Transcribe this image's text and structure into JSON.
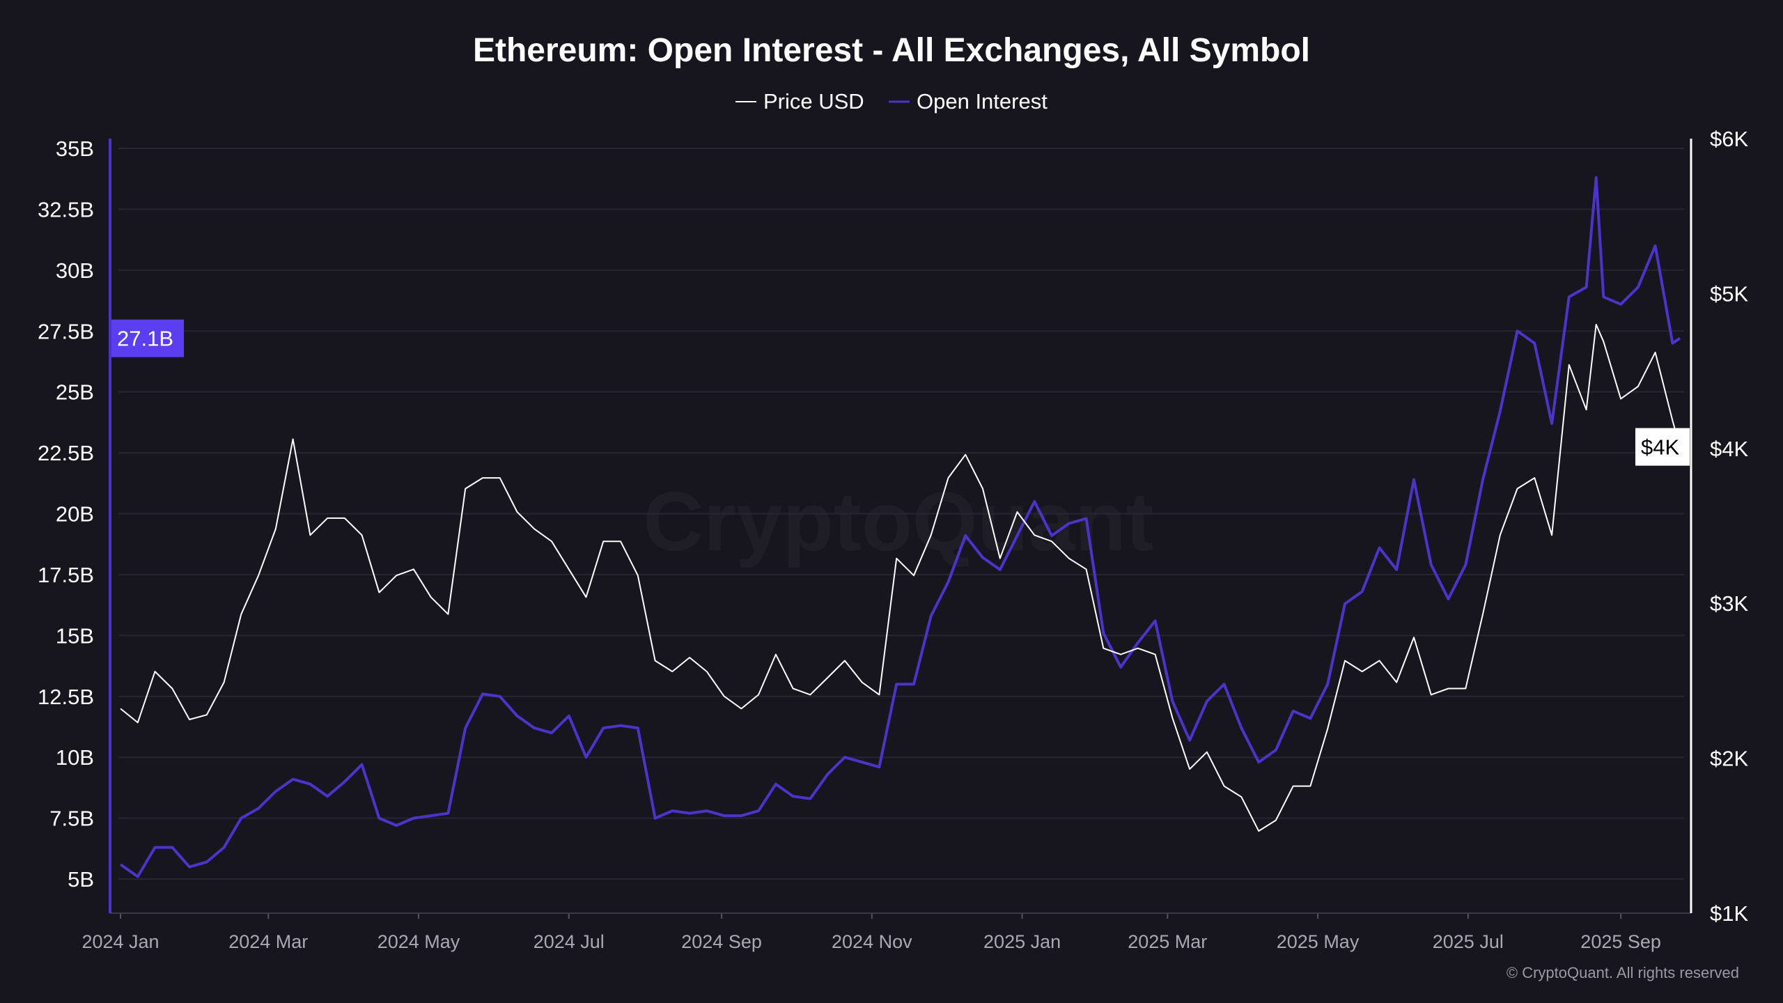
{
  "chart_data": {
    "type": "line",
    "title": "Ethereum: Open Interest - All Exchanges, All Symbol",
    "legend_position": "top-center",
    "grid": true,
    "watermark": "CryptoQuant",
    "copyright": "© CryptoQuant. All rights reserved",
    "x_ticks": [
      "2024 Jan",
      "2024 Mar",
      "2024 May",
      "2024 Jul",
      "2024 Sep",
      "2024 Nov",
      "2025 Jan",
      "2025 Mar",
      "2025 May",
      "2025 Jul",
      "2025 Sep"
    ],
    "x_tick_dates": [
      "2024-01-01",
      "2024-03-01",
      "2024-05-01",
      "2024-07-01",
      "2024-09-01",
      "2024-11-01",
      "2025-01-01",
      "2025-03-01",
      "2025-05-01",
      "2025-07-01",
      "2025-09-01"
    ],
    "xlim": [
      "2024-01-01",
      "2025-09-25"
    ],
    "left_axis": {
      "series": "Open Interest",
      "unit": "B",
      "ylim": [
        3.6,
        35.4
      ],
      "ticks": [
        "5B",
        "7.5B",
        "10B",
        "12.5B",
        "15B",
        "17.5B",
        "20B",
        "22.5B",
        "25B",
        "27.5B",
        "30B",
        "32.5B",
        "35B"
      ],
      "tick_values": [
        5,
        7.5,
        10,
        12.5,
        15,
        17.5,
        20,
        22.5,
        25,
        27.5,
        30,
        32.5,
        35
      ],
      "current_label": "27.1B"
    },
    "right_axis": {
      "series": "Price USD",
      "unit": "$K",
      "ylim": [
        1,
        6
      ],
      "ticks": [
        "$1K",
        "$2K",
        "$3K",
        "$4K",
        "$5K",
        "$6K"
      ],
      "tick_values": [
        1,
        2,
        3,
        4,
        5,
        6
      ],
      "current_label": "$4K"
    },
    "colors": {
      "background": "#17161f",
      "price": "#ffffff",
      "open_interest": "#4a34c9",
      "badge": "#5a3ef0",
      "grid": "#272632"
    },
    "dates": [
      "2024-01-01",
      "2024-01-08",
      "2024-01-15",
      "2024-01-22",
      "2024-01-29",
      "2024-02-05",
      "2024-02-12",
      "2024-02-19",
      "2024-02-26",
      "2024-03-04",
      "2024-03-11",
      "2024-03-18",
      "2024-03-25",
      "2024-04-01",
      "2024-04-08",
      "2024-04-15",
      "2024-04-22",
      "2024-04-29",
      "2024-05-06",
      "2024-05-13",
      "2024-05-20",
      "2024-05-27",
      "2024-06-03",
      "2024-06-10",
      "2024-06-17",
      "2024-06-24",
      "2024-07-01",
      "2024-07-08",
      "2024-07-15",
      "2024-07-22",
      "2024-07-29",
      "2024-08-05",
      "2024-08-12",
      "2024-08-19",
      "2024-08-26",
      "2024-09-02",
      "2024-09-09",
      "2024-09-16",
      "2024-09-23",
      "2024-09-30",
      "2024-10-07",
      "2024-10-14",
      "2024-10-21",
      "2024-10-28",
      "2024-11-04",
      "2024-11-11",
      "2024-11-18",
      "2024-11-25",
      "2024-12-02",
      "2024-12-09",
      "2024-12-16",
      "2024-12-23",
      "2024-12-30",
      "2025-01-06",
      "2025-01-13",
      "2025-01-20",
      "2025-01-27",
      "2025-02-03",
      "2025-02-10",
      "2025-02-17",
      "2025-02-24",
      "2025-03-03",
      "2025-03-10",
      "2025-03-17",
      "2025-03-24",
      "2025-03-31",
      "2025-04-07",
      "2025-04-14",
      "2025-04-21",
      "2025-04-28",
      "2025-05-05",
      "2025-05-12",
      "2025-05-19",
      "2025-05-26",
      "2025-06-02",
      "2025-06-09",
      "2025-06-16",
      "2025-06-23",
      "2025-06-30",
      "2025-07-07",
      "2025-07-14",
      "2025-07-21",
      "2025-07-28",
      "2025-08-04",
      "2025-08-11",
      "2025-08-18",
      "2025-08-22",
      "2025-08-25",
      "2025-09-01",
      "2025-09-08",
      "2025-09-15",
      "2025-09-22",
      "2025-09-25"
    ],
    "series": [
      {
        "name": "Price USD",
        "axis": "right",
        "values": [
          2.32,
          2.23,
          2.56,
          2.45,
          2.25,
          2.28,
          2.49,
          2.93,
          3.18,
          3.48,
          4.06,
          3.44,
          3.55,
          3.55,
          3.44,
          3.07,
          3.18,
          3.22,
          3.04,
          2.93,
          3.74,
          3.81,
          3.81,
          3.59,
          3.48,
          3.4,
          3.22,
          3.04,
          3.4,
          3.4,
          3.18,
          2.63,
          2.56,
          2.65,
          2.56,
          2.4,
          2.32,
          2.41,
          2.67,
          2.45,
          2.41,
          2.52,
          2.63,
          2.49,
          2.41,
          3.29,
          3.18,
          3.44,
          3.81,
          3.96,
          3.74,
          3.29,
          3.59,
          3.44,
          3.4,
          3.29,
          3.22,
          2.71,
          2.67,
          2.71,
          2.67,
          2.26,
          1.93,
          2.04,
          1.82,
          1.75,
          1.53,
          1.6,
          1.82,
          1.82,
          2.19,
          2.63,
          2.56,
          2.63,
          2.49,
          2.78,
          2.41,
          2.45,
          2.45,
          2.93,
          3.44,
          3.74,
          3.81,
          3.44,
          4.54,
          4.25,
          4.8,
          4.69,
          4.32,
          4.4,
          4.62,
          4.18,
          4.01
        ]
      },
      {
        "name": "Open Interest",
        "axis": "left",
        "values": [
          5.6,
          5.1,
          6.3,
          6.3,
          5.5,
          5.7,
          6.3,
          7.5,
          7.9,
          8.6,
          9.1,
          8.9,
          8.4,
          9.0,
          9.7,
          7.5,
          7.2,
          7.5,
          7.6,
          7.7,
          11.2,
          12.6,
          12.5,
          11.7,
          11.2,
          11.0,
          11.7,
          10.0,
          11.2,
          11.3,
          11.2,
          7.5,
          7.8,
          7.7,
          7.8,
          7.6,
          7.6,
          7.8,
          8.9,
          8.4,
          8.3,
          9.3,
          10.0,
          9.8,
          9.6,
          13.0,
          13.0,
          15.8,
          17.2,
          19.1,
          18.2,
          17.7,
          19.1,
          20.5,
          19.1,
          19.6,
          19.8,
          15.1,
          13.7,
          14.7,
          15.6,
          12.3,
          10.7,
          12.3,
          13.0,
          11.2,
          9.8,
          10.3,
          11.9,
          11.6,
          13.0,
          16.3,
          16.8,
          18.6,
          17.7,
          21.4,
          17.9,
          16.5,
          17.9,
          21.4,
          24.2,
          27.5,
          27.0,
          23.7,
          28.9,
          29.3,
          33.8,
          28.9,
          28.6,
          29.3,
          31.0,
          27.0,
          27.2
        ]
      }
    ]
  }
}
